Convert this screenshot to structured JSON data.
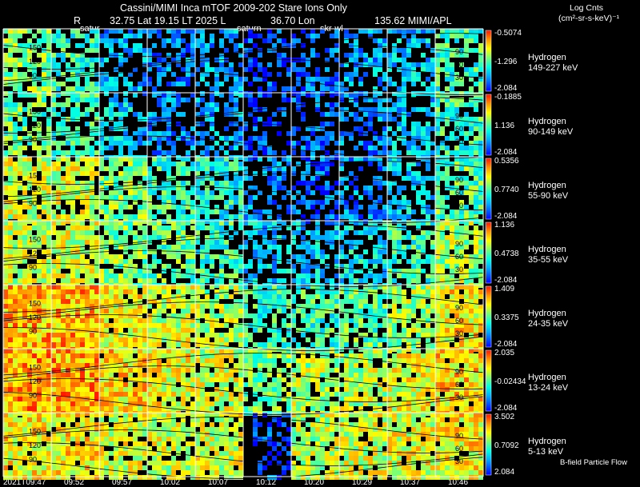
{
  "header": {
    "title": "Cassini/MIMI Inca mTOF  2009-202   Stare   Ions Only",
    "r_label": "R",
    "lat_label": "32.75 Lat 19.15 LT 2025 L",
    "lon_label": "36.70 Lon",
    "mimi_label": "135.62  MIMI/APL",
    "satur_1": "satur",
    "satur_2": "saturn",
    "skr_label": "skr-wl",
    "units_line1": "Log Cnts",
    "units_line2": "(cm²-sr-s-keV)⁻¹"
  },
  "footer": {
    "bfield_label": "B-field Particle Flow"
  },
  "colors": {
    "low": "#0000ff",
    "mid": "#00ffff",
    "mid2": "#ffff00",
    "high": "#ff0000",
    "grid": "#ffffff",
    "contour": "#000000"
  },
  "chart_data": {
    "type": "heatmap",
    "title": "Cassini/MIMI Inca mTOF  2009-202   Stare   Ions Only",
    "x_tick_labels": [
      "2021T09:47",
      "09:52",
      "09:57",
      "10:02",
      "10:07",
      "10:12",
      "10:20",
      "10:29",
      "10:37",
      "10:46"
    ],
    "rows": [
      {
        "species": "Hydrogen",
        "energy": "149-227 keV",
        "cb_max": "-0.5074",
        "cb_mid": "-1.296",
        "cb_min": "-2.084",
        "levels": [
          0.55,
          0.45,
          0.25,
          0.2,
          0.25,
          0.1,
          0.15,
          0.25,
          0.3,
          0.45
        ]
      },
      {
        "species": "Hydrogen",
        "energy": "90-149 keV",
        "cb_max": "-0.1885",
        "cb_mid": "1.136",
        "cb_min": "-2.084",
        "levels": [
          0.5,
          0.45,
          0.3,
          0.2,
          0.25,
          0.1,
          0.15,
          0.2,
          0.3,
          0.45
        ]
      },
      {
        "species": "Hydrogen",
        "energy": "55-90 keV",
        "cb_max": "0.5356",
        "cb_mid": "0.7740",
        "cb_min": "-2.084",
        "levels": [
          0.65,
          0.65,
          0.55,
          0.45,
          0.4,
          0.2,
          0.15,
          0.2,
          0.3,
          0.5
        ]
      },
      {
        "species": "Hydrogen",
        "energy": "35-55 keV",
        "cb_max": "1.136",
        "cb_mid": "0.4738",
        "cb_min": "-2.084",
        "levels": [
          0.65,
          0.65,
          0.55,
          0.5,
          0.45,
          0.3,
          0.3,
          0.35,
          0.45,
          0.6
        ]
      },
      {
        "species": "Hydrogen",
        "energy": "24-35 keV",
        "cb_max": "1.409",
        "cb_mid": "0.3375",
        "cb_min": "-2.084",
        "levels": [
          0.8,
          0.8,
          0.72,
          0.65,
          0.6,
          0.45,
          0.45,
          0.5,
          0.6,
          0.72
        ]
      },
      {
        "species": "Hydrogen",
        "energy": "13-24 keV",
        "cb_max": "2.035",
        "cb_mid": "-0.02434",
        "cb_min": "-2.084",
        "levels": [
          0.82,
          0.82,
          0.75,
          0.7,
          0.65,
          0.55,
          0.6,
          0.62,
          0.68,
          0.75
        ]
      },
      {
        "species": "Hydrogen",
        "energy": "5-13 keV",
        "cb_max": "3.502",
        "cb_mid": "0.7092",
        "cb_min": "2.084",
        "levels": [
          0.72,
          0.72,
          0.68,
          0.65,
          0.65,
          0.1,
          0.62,
          0.65,
          0.68,
          0.72
        ]
      }
    ],
    "contour_labels": [
      "150",
      "120",
      "90",
      "60",
      "30"
    ],
    "grid": true
  }
}
